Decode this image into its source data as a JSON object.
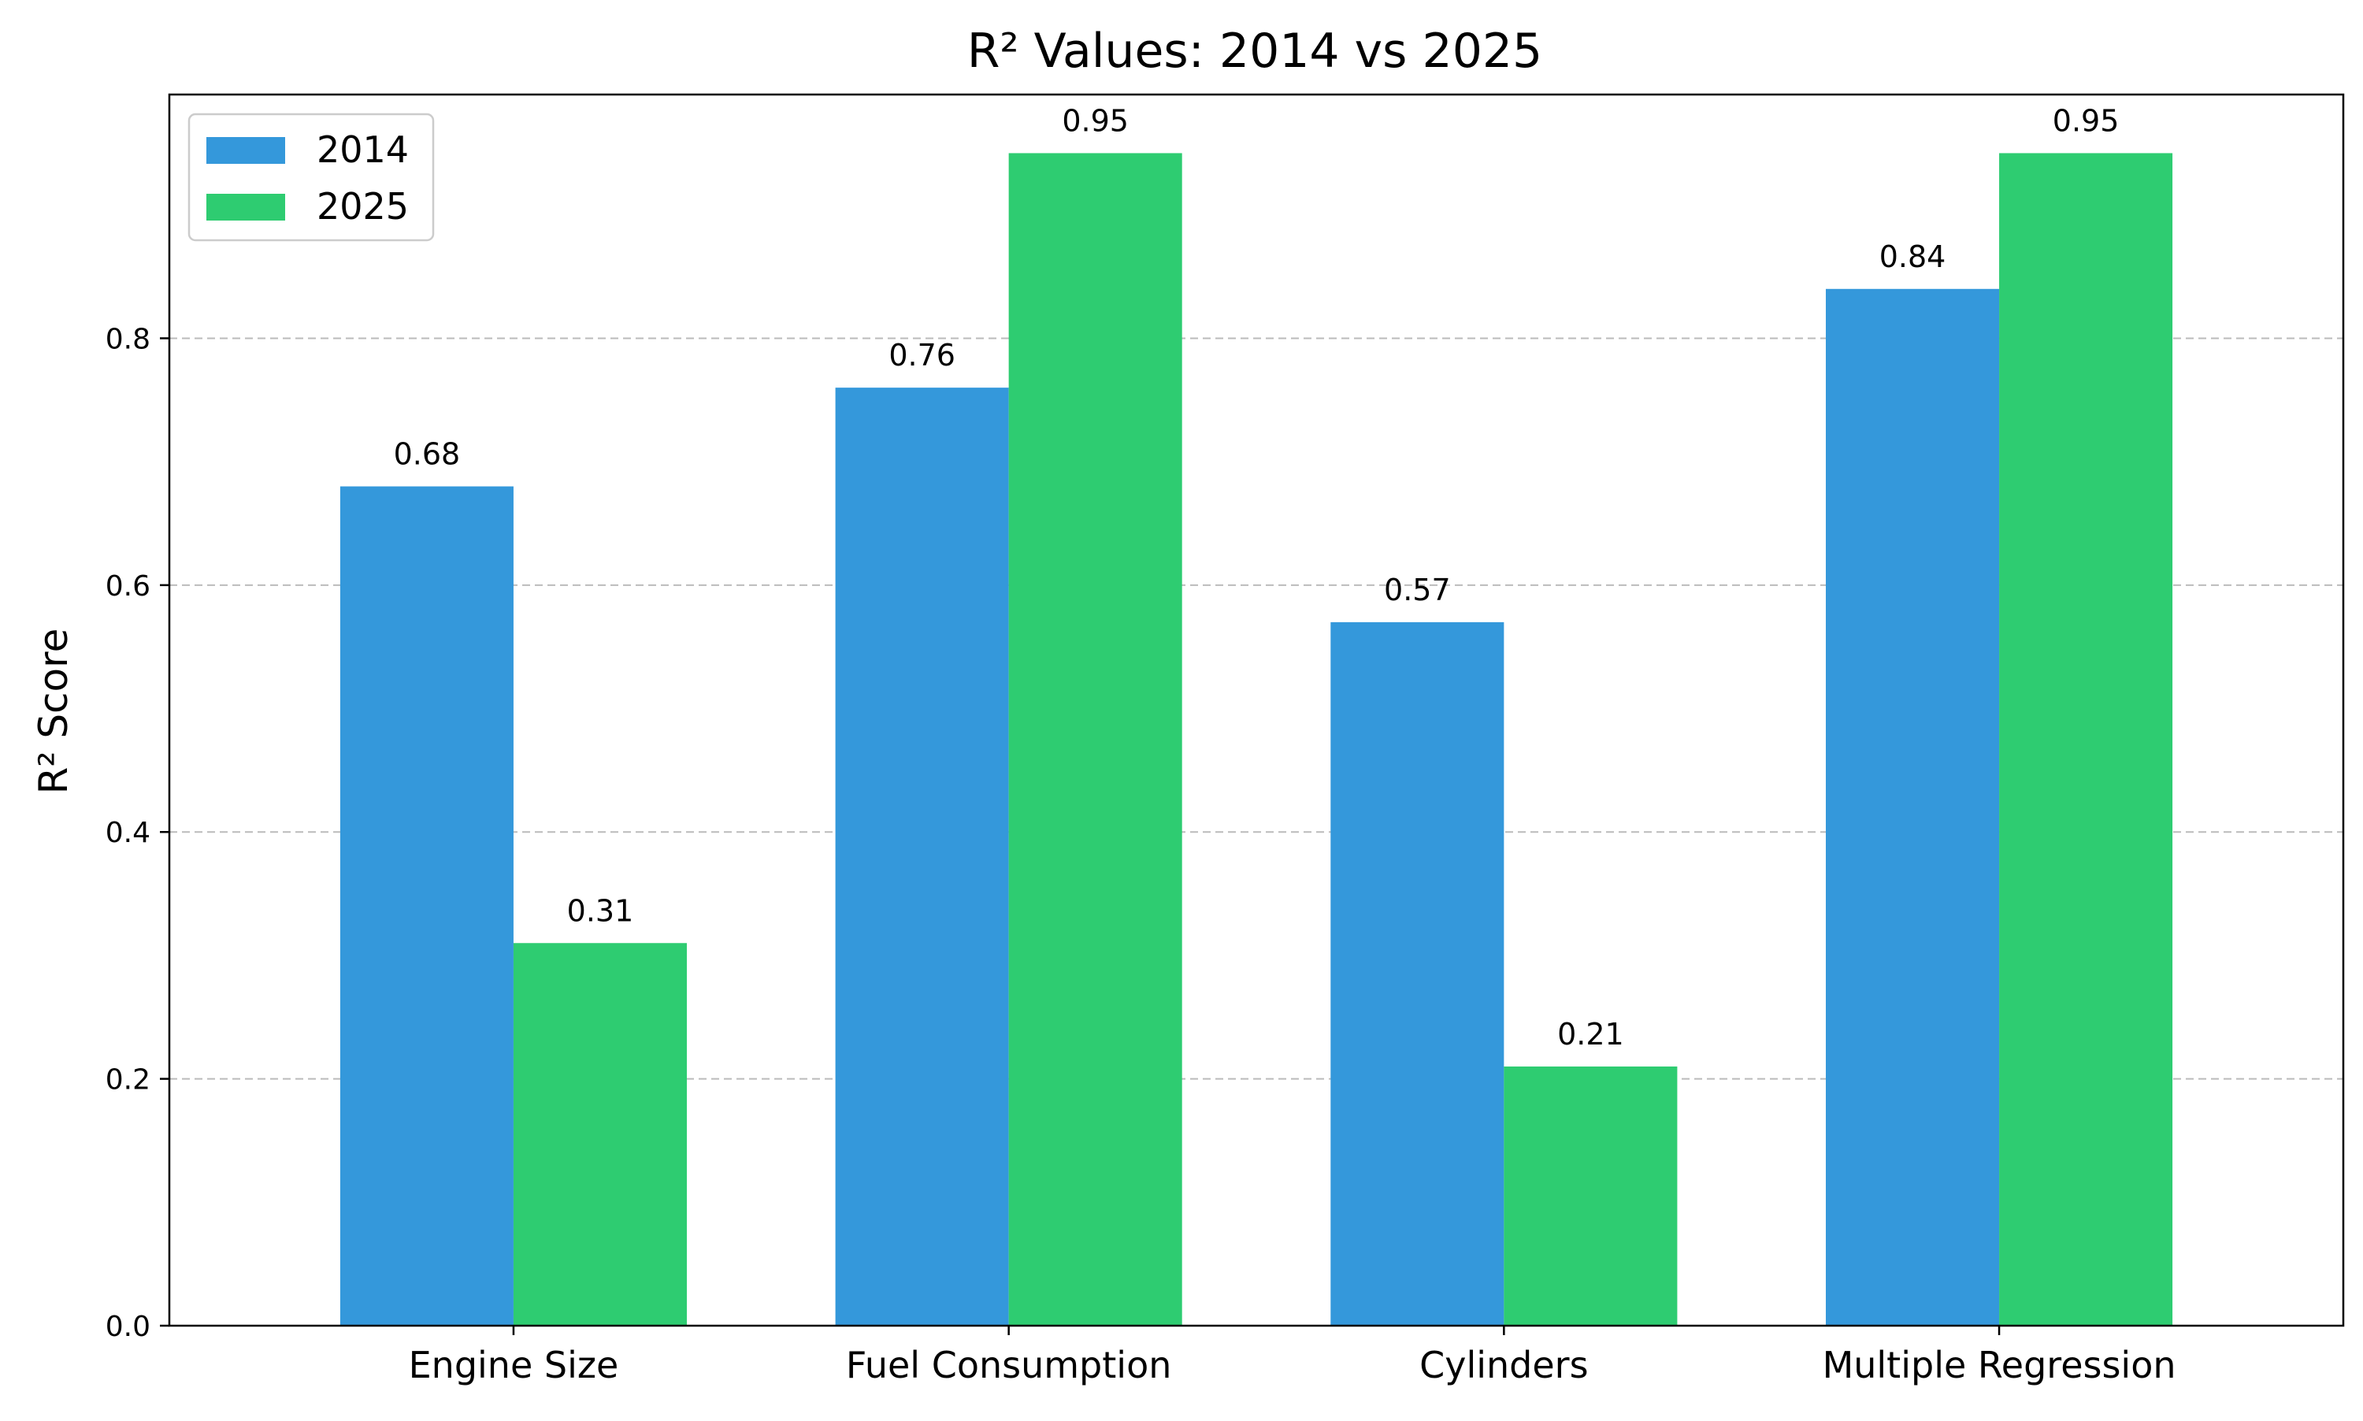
{
  "chart_data": {
    "type": "bar",
    "title": "R² Values: 2014 vs 2025",
    "xlabel": "",
    "ylabel": "R² Score",
    "categories": [
      "Engine Size",
      "Fuel Consumption",
      "Cylinders",
      "Multiple Regression"
    ],
    "series": [
      {
        "name": "2014",
        "values": [
          0.68,
          0.76,
          0.57,
          0.84
        ],
        "color": "#3498db"
      },
      {
        "name": "2025",
        "values": [
          0.31,
          0.95,
          0.21,
          0.95
        ],
        "color": "#2ecc71"
      }
    ],
    "value_labels": [
      [
        "0.68",
        "0.76",
        "0.57",
        "0.84"
      ],
      [
        "0.31",
        "0.95",
        "0.21",
        "0.95"
      ]
    ],
    "ylim": [
      0,
      0.9975
    ],
    "yticks": [
      0.0,
      0.2,
      0.4,
      0.6,
      0.8
    ],
    "ytick_labels": [
      "0.0",
      "0.2",
      "0.4",
      "0.6",
      "0.8"
    ],
    "grid": {
      "axis": "y",
      "style": "dashed",
      "color": "#b0b0b0"
    },
    "legend": {
      "position": "upper left",
      "entries": [
        "2014",
        "2025"
      ]
    }
  }
}
